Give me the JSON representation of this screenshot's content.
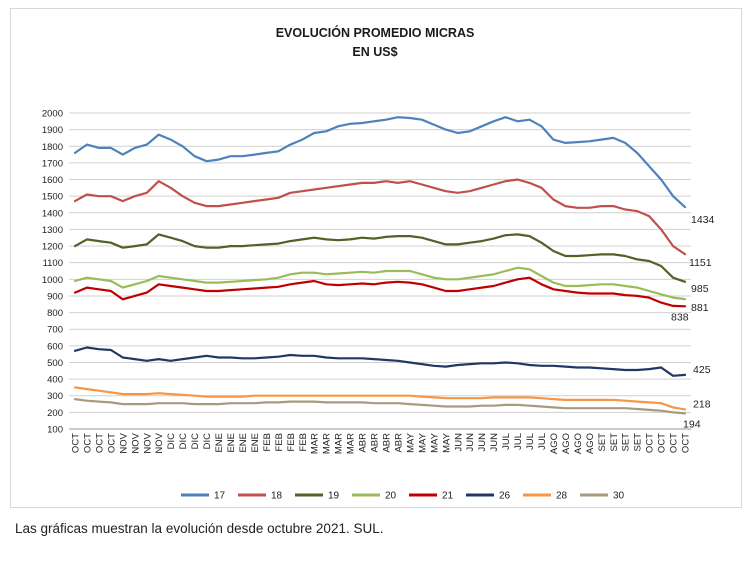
{
  "chart_data": {
    "type": "line",
    "title": "EVOLUCIÓN PROMEDIO MICRAS",
    "subtitle": "EN US$",
    "xlabel": "",
    "ylabel": "",
    "ylim": [
      100,
      2000
    ],
    "yticks": [
      100,
      200,
      300,
      400,
      500,
      600,
      700,
      800,
      900,
      1000,
      1100,
      1200,
      1300,
      1400,
      1500,
      1600,
      1700,
      1800,
      1900,
      2000
    ],
    "grid": true,
    "legend_position": "bottom",
    "categories": [
      "OCT",
      "OCT",
      "OCT",
      "OCT",
      "NOV",
      "NOV",
      "NOV",
      "NOV",
      "DIC",
      "DIC",
      "DIC",
      "DIC",
      "ENE",
      "ENE",
      "ENE",
      "ENE",
      "FEB",
      "FEB",
      "FEB",
      "FEB",
      "MAR",
      "MAR",
      "MAR",
      "MAR",
      "ABR",
      "ABR",
      "ABR",
      "ABR",
      "MAY",
      "MAY",
      "MAY",
      "MAY",
      "JUN",
      "JUN",
      "JUN",
      "JUN",
      "JUL",
      "JUL",
      "JUL",
      "JUL",
      "AGO",
      "AGO",
      "AGO",
      "AGO",
      "SET",
      "SET",
      "SET",
      "SET",
      "OCT",
      "OCT",
      "OCT",
      "OCT"
    ],
    "series": [
      {
        "name": "17",
        "color": "#4f81bd",
        "end_label": "1434",
        "values": [
          1760,
          1810,
          1790,
          1790,
          1750,
          1790,
          1810,
          1870,
          1840,
          1800,
          1740,
          1710,
          1720,
          1740,
          1740,
          1750,
          1760,
          1770,
          1810,
          1840,
          1880,
          1890,
          1920,
          1935,
          1940,
          1950,
          1960,
          1975,
          1970,
          1960,
          1930,
          1900,
          1880,
          1890,
          1920,
          1950,
          1975,
          1950,
          1960,
          1920,
          1840,
          1820,
          1825,
          1830,
          1840,
          1850,
          1820,
          1760,
          1680,
          1600,
          1500,
          1434
        ]
      },
      {
        "name": "18",
        "color": "#c0504d",
        "end_label": "1151",
        "values": [
          1470,
          1510,
          1500,
          1500,
          1470,
          1500,
          1520,
          1590,
          1550,
          1500,
          1460,
          1440,
          1440,
          1450,
          1460,
          1470,
          1480,
          1490,
          1520,
          1530,
          1540,
          1550,
          1560,
          1570,
          1580,
          1580,
          1590,
          1580,
          1590,
          1570,
          1550,
          1530,
          1520,
          1530,
          1550,
          1570,
          1590,
          1600,
          1580,
          1550,
          1480,
          1440,
          1430,
          1430,
          1440,
          1440,
          1420,
          1410,
          1380,
          1300,
          1200,
          1151
        ]
      },
      {
        "name": "19",
        "color": "#4f6228",
        "end_label": "985",
        "values": [
          1200,
          1240,
          1230,
          1220,
          1190,
          1200,
          1210,
          1270,
          1250,
          1230,
          1200,
          1190,
          1190,
          1200,
          1200,
          1205,
          1210,
          1215,
          1230,
          1240,
          1250,
          1240,
          1235,
          1240,
          1250,
          1245,
          1255,
          1260,
          1260,
          1250,
          1230,
          1210,
          1210,
          1220,
          1230,
          1245,
          1265,
          1270,
          1260,
          1220,
          1170,
          1140,
          1140,
          1145,
          1150,
          1150,
          1140,
          1120,
          1110,
          1080,
          1010,
          985
        ]
      },
      {
        "name": "20",
        "color": "#9bbb59",
        "end_label": "881",
        "values": [
          990,
          1010,
          1000,
          990,
          950,
          970,
          990,
          1020,
          1010,
          1000,
          990,
          980,
          980,
          985,
          990,
          995,
          1000,
          1010,
          1030,
          1040,
          1040,
          1030,
          1035,
          1040,
          1045,
          1040,
          1050,
          1050,
          1050,
          1030,
          1010,
          1000,
          1000,
          1010,
          1020,
          1030,
          1050,
          1070,
          1060,
          1020,
          980,
          960,
          960,
          965,
          970,
          970,
          960,
          950,
          930,
          910,
          890,
          881
        ]
      },
      {
        "name": "21",
        "color": "#c00000",
        "end_label": "838",
        "values": [
          920,
          950,
          940,
          930,
          880,
          900,
          920,
          970,
          960,
          950,
          940,
          930,
          930,
          935,
          940,
          945,
          950,
          955,
          970,
          980,
          990,
          970,
          965,
          970,
          975,
          970,
          980,
          985,
          980,
          970,
          950,
          930,
          930,
          940,
          950,
          960,
          980,
          1000,
          1010,
          970,
          940,
          930,
          920,
          915,
          915,
          915,
          905,
          900,
          890,
          860,
          840,
          838
        ]
      },
      {
        "name": "26",
        "color": "#1f3864",
        "end_label": "425",
        "values": [
          570,
          590,
          580,
          575,
          530,
          520,
          510,
          520,
          510,
          520,
          530,
          540,
          530,
          530,
          525,
          525,
          530,
          535,
          545,
          540,
          540,
          530,
          525,
          525,
          525,
          520,
          515,
          510,
          500,
          490,
          480,
          475,
          485,
          490,
          495,
          495,
          500,
          495,
          485,
          480,
          480,
          475,
          470,
          470,
          465,
          460,
          455,
          455,
          460,
          470,
          420,
          425
        ]
      },
      {
        "name": "28",
        "color": "#f79646",
        "end_label": "218",
        "values": [
          350,
          340,
          330,
          320,
          310,
          310,
          310,
          315,
          310,
          305,
          300,
          295,
          295,
          295,
          295,
          300,
          300,
          300,
          300,
          300,
          300,
          300,
          300,
          300,
          300,
          300,
          300,
          300,
          300,
          295,
          290,
          285,
          285,
          285,
          285,
          290,
          290,
          290,
          290,
          285,
          280,
          275,
          275,
          275,
          275,
          275,
          270,
          265,
          260,
          255,
          230,
          218
        ]
      },
      {
        "name": "30",
        "color": "#a69b7c",
        "end_label": "194",
        "values": [
          280,
          270,
          265,
          260,
          250,
          250,
          250,
          255,
          255,
          255,
          250,
          250,
          250,
          255,
          255,
          255,
          260,
          260,
          265,
          265,
          265,
          260,
          260,
          260,
          260,
          255,
          255,
          255,
          250,
          245,
          240,
          235,
          235,
          235,
          240,
          240,
          245,
          245,
          240,
          235,
          230,
          225,
          225,
          225,
          225,
          225,
          225,
          220,
          215,
          210,
          200,
          194
        ]
      }
    ]
  },
  "caption": "Las gráficas muestran la evolución desde octubre 2021. SUL."
}
